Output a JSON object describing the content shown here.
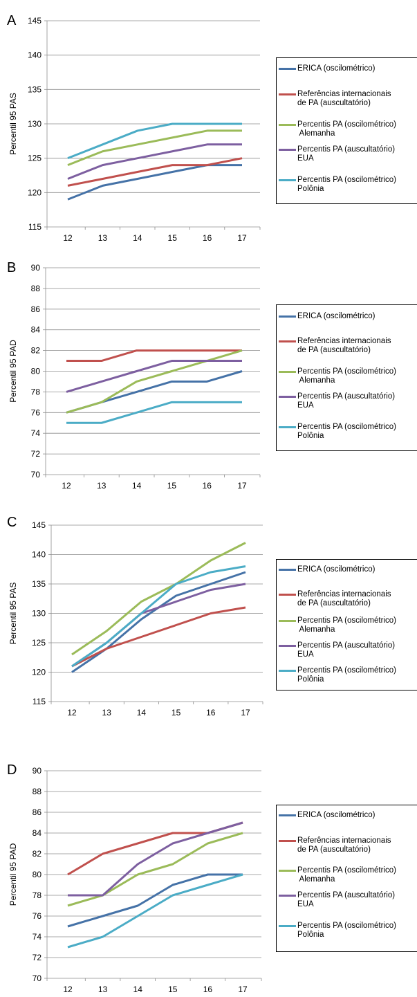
{
  "colors": [
    "#4572a7",
    "#c0504d",
    "#9bbb59",
    "#7d5fa0",
    "#4bacc6"
  ],
  "legend_entries": [
    "ERICA (oscilométrico)",
    "Referências internacionais\nde PA (auscultatório)",
    "Percentis PA (oscilométrico)\n Alemanha",
    "Percentis PA (auscultatório)\nEUA",
    "Percentis PA (oscilométrico)\nPolônia"
  ],
  "chart_data": [
    {
      "panel_label": "A",
      "type": "line",
      "ylabel": "Percentil 95 PAS",
      "categories": [
        "12",
        "13",
        "14",
        "15",
        "16",
        "17"
      ],
      "ylim": [
        115,
        145
      ],
      "yticks": [
        115,
        120,
        125,
        130,
        135,
        140,
        145
      ],
      "series": [
        {
          "name": "ERICA (oscilométrico)",
          "values": [
            119,
            121,
            122,
            123,
            124,
            124
          ]
        },
        {
          "name": "Referências internacionais de PA (auscultatório)",
          "values": [
            121,
            122,
            123,
            124,
            124,
            125
          ]
        },
        {
          "name": "Percentis PA (oscilométrico) Alemanha",
          "values": [
            124,
            126,
            127,
            128,
            129,
            129
          ]
        },
        {
          "name": "Percentis PA (auscultatório) EUA",
          "values": [
            122,
            124,
            125,
            126,
            127,
            127
          ]
        },
        {
          "name": "Percentis PA (oscilométrico) Polônia",
          "values": [
            125,
            127,
            129,
            130,
            130,
            130
          ]
        }
      ]
    },
    {
      "panel_label": "B",
      "type": "line",
      "ylabel": "Percentil 95 PAD",
      "categories": [
        "12",
        "13",
        "14",
        "15",
        "16",
        "17"
      ],
      "ylim": [
        70,
        90
      ],
      "yticks": [
        70,
        72,
        74,
        76,
        78,
        80,
        82,
        84,
        86,
        88,
        90
      ],
      "series": [
        {
          "name": "ERICA (oscilométrico)",
          "values": [
            76,
            77,
            78,
            79,
            79,
            80
          ]
        },
        {
          "name": "Referências internacionais de PA (auscultatório)",
          "values": [
            81,
            81,
            82,
            82,
            82,
            82
          ]
        },
        {
          "name": "Percentis PA (oscilométrico) Alemanha",
          "values": [
            76,
            77,
            79,
            80,
            81,
            82
          ]
        },
        {
          "name": "Percentis PA (auscultatório) EUA",
          "values": [
            78,
            79,
            80,
            81,
            81,
            81
          ]
        },
        {
          "name": "Percentis PA (oscilométrico) Polônia",
          "values": [
            75,
            75,
            76,
            77,
            77,
            77
          ]
        }
      ]
    },
    {
      "panel_label": "C",
      "type": "line",
      "ylabel": "Percentil 95 PAS",
      "categories": [
        "12",
        "13",
        "14",
        "15",
        "16",
        "17"
      ],
      "ylim": [
        115,
        145
      ],
      "yticks": [
        115,
        120,
        125,
        130,
        135,
        140,
        145
      ],
      "series": [
        {
          "name": "ERICA (oscilométrico)",
          "values": [
            120,
            124,
            129,
            133,
            135,
            137
          ]
        },
        {
          "name": "Referências internacionais de PA (auscultatório)",
          "values": [
            121,
            124,
            126,
            128,
            130,
            131
          ]
        },
        {
          "name": "Percentis PA (oscilométrico) Alemanha",
          "values": [
            123,
            127,
            132,
            135,
            139,
            142
          ]
        },
        {
          "name": "Percentis PA (auscultatório) EUA",
          "values": [
            121,
            125,
            130,
            132,
            134,
            135
          ]
        },
        {
          "name": "Percentis PA (oscilométrico) Polônia",
          "values": [
            121,
            125,
            130,
            135,
            137,
            138
          ]
        }
      ]
    },
    {
      "panel_label": "D",
      "type": "line",
      "ylabel": "Percentil 95 PAD",
      "categories": [
        "12",
        "13",
        "14",
        "15",
        "16",
        "17"
      ],
      "ylim": [
        70,
        90
      ],
      "yticks": [
        70,
        72,
        74,
        76,
        78,
        80,
        82,
        84,
        86,
        88,
        90
      ],
      "series": [
        {
          "name": "ERICA (oscilométrico)",
          "values": [
            75,
            76,
            77,
            79,
            80,
            80
          ]
        },
        {
          "name": "Referências internacionais de PA (auscultatório)",
          "values": [
            80,
            82,
            83,
            84,
            84,
            85
          ]
        },
        {
          "name": "Percentis PA (oscilométrico) Alemanha",
          "values": [
            77,
            78,
            80,
            81,
            83,
            84
          ]
        },
        {
          "name": "Percentis PA (auscultatório) EUA",
          "values": [
            78,
            78,
            81,
            83,
            84,
            85
          ]
        },
        {
          "name": "Percentis PA (oscilométrico) Polônia",
          "values": [
            73,
            74,
            76,
            78,
            79,
            80
          ]
        }
      ]
    }
  ]
}
